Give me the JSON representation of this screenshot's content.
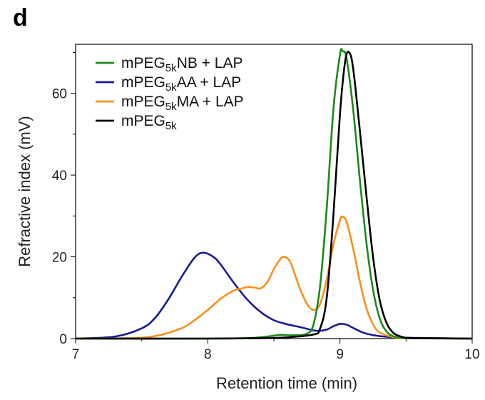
{
  "panel_label": "d",
  "chart_data": {
    "type": "line",
    "title": "",
    "xlabel": "Retention time (min)",
    "ylabel": "Refractive index (mV)",
    "xlim": [
      7,
      10
    ],
    "ylim": [
      0,
      72
    ],
    "xticks": [
      7,
      8,
      9,
      10
    ],
    "yticks": [
      0,
      20,
      40,
      60
    ],
    "grid": false,
    "legend_position": "top-left",
    "series": [
      {
        "name": "mPEG5kNB + LAP",
        "legend": {
          "base": "mPEG",
          "sub": "5k",
          "rest": "NB + LAP"
        },
        "color": "#1a8a1a",
        "x": [
          7.0,
          8.0,
          8.3,
          8.45,
          8.55,
          8.65,
          8.75,
          8.8,
          8.85,
          8.9,
          8.95,
          9.0,
          9.02,
          9.05,
          9.1,
          9.15,
          9.2,
          9.25,
          9.3,
          9.35,
          9.4,
          9.45,
          9.5,
          9.6,
          10.0
        ],
        "y": [
          0.0,
          0.0,
          0.1,
          0.5,
          0.9,
          0.8,
          1.2,
          3.5,
          13.0,
          32.0,
          56.0,
          69.5,
          70.3,
          68.5,
          56.0,
          39.0,
          23.5,
          12.0,
          5.0,
          1.8,
          0.6,
          0.2,
          0.1,
          0.05,
          0.0
        ]
      },
      {
        "name": "mPEG5kAA + LAP",
        "legend": {
          "base": "mPEG",
          "sub": "5k",
          "rest": "AA + LAP"
        },
        "color": "#1a1a96",
        "x": [
          7.0,
          7.3,
          7.5,
          7.6,
          7.7,
          7.8,
          7.9,
          7.97,
          8.05,
          8.1,
          8.2,
          8.3,
          8.4,
          8.5,
          8.6,
          8.7,
          8.8,
          8.85,
          8.9,
          8.95,
          9.0,
          9.05,
          9.1,
          9.15,
          9.2,
          9.3,
          9.5,
          10.0
        ],
        "y": [
          0.0,
          0.5,
          2.5,
          5.0,
          9.5,
          15.0,
          19.8,
          21.0,
          19.8,
          18.0,
          13.5,
          9.5,
          6.5,
          4.5,
          3.5,
          2.8,
          2.0,
          1.9,
          2.2,
          3.0,
          3.6,
          3.4,
          2.6,
          1.8,
          1.2,
          0.6,
          0.2,
          0.0
        ]
      },
      {
        "name": "mPEG5kMA + LAP",
        "legend": {
          "base": "mPEG",
          "sub": "5k",
          "rest": "MA + LAP"
        },
        "color": "#f7901e",
        "x": [
          7.0,
          7.4,
          7.6,
          7.8,
          7.9,
          8.0,
          8.1,
          8.2,
          8.25,
          8.3,
          8.35,
          8.4,
          8.45,
          8.5,
          8.55,
          8.58,
          8.62,
          8.65,
          8.7,
          8.75,
          8.8,
          8.85,
          8.9,
          8.95,
          9.0,
          9.02,
          9.05,
          9.1,
          9.15,
          9.2,
          9.25,
          9.3,
          9.4,
          9.5,
          10.0
        ],
        "y": [
          0.0,
          0.1,
          0.6,
          2.5,
          4.5,
          7.0,
          9.8,
          11.8,
          12.2,
          12.6,
          12.5,
          12.3,
          13.8,
          17.0,
          19.5,
          20.0,
          19.0,
          16.5,
          12.0,
          8.5,
          7.0,
          8.5,
          14.5,
          23.0,
          29.0,
          29.8,
          28.5,
          22.0,
          14.0,
          7.5,
          3.5,
          1.5,
          0.4,
          0.1,
          0.0
        ]
      },
      {
        "name": "mPEG5k",
        "legend": {
          "base": "mPEG",
          "sub": "5k",
          "rest": ""
        },
        "color": "#000000",
        "x": [
          7.0,
          8.0,
          8.4,
          8.6,
          8.8,
          8.85,
          8.9,
          8.95,
          9.0,
          9.04,
          9.07,
          9.1,
          9.15,
          9.2,
          9.25,
          9.3,
          9.35,
          9.4,
          9.45,
          9.5,
          9.6,
          10.0
        ],
        "y": [
          0.0,
          0.0,
          0.1,
          0.3,
          1.0,
          2.5,
          10.0,
          30.0,
          55.0,
          68.0,
          70.0,
          66.0,
          51.0,
          35.0,
          20.0,
          9.5,
          4.0,
          1.5,
          0.6,
          0.2,
          0.1,
          0.0
        ]
      }
    ]
  }
}
